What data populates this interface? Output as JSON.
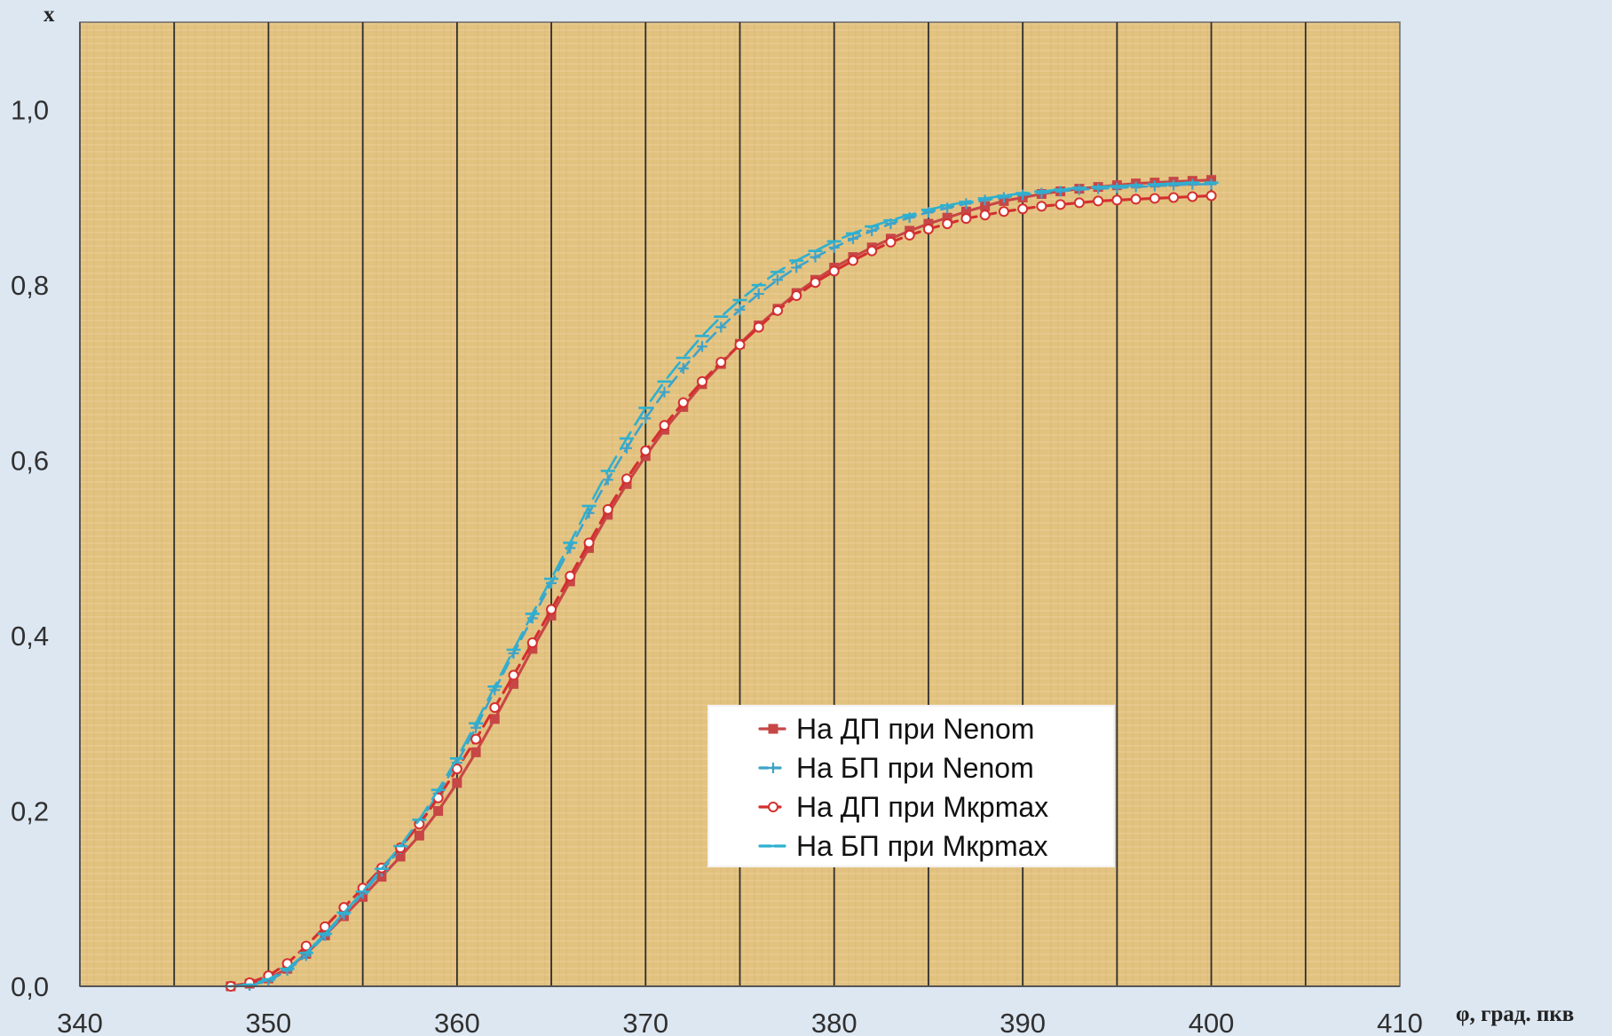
{
  "chart_data": {
    "type": "line",
    "ylabel": "x",
    "xlabel": "φ, град. пкв",
    "xlim": [
      340,
      410
    ],
    "ylim": [
      0,
      1.1
    ],
    "x_ticks": [
      340,
      350,
      360,
      370,
      380,
      390,
      400,
      410
    ],
    "y_ticks": [
      0,
      0.2,
      0.4,
      0.6,
      0.8,
      1.0
    ],
    "x_tick_labels": [
      "340",
      "350",
      "360",
      "370",
      "380",
      "390",
      "400",
      "410"
    ],
    "y_tick_labels": [
      "0,0",
      "0,2",
      "0,4",
      "0,6",
      "0,8",
      "1,0"
    ],
    "vertical_grid": [
      345,
      350,
      355,
      360,
      365,
      370,
      375,
      380,
      385,
      390,
      395,
      400,
      405
    ],
    "horizontal_grid": false,
    "legend_position": "lower-right",
    "series": [
      {
        "name": "На ДП при Nenom",
        "color": "#c74646",
        "line_style": "solid",
        "marker": "square",
        "x": [
          348,
          349,
          350,
          351,
          352,
          353,
          354,
          355,
          356,
          357,
          358,
          359,
          360,
          361,
          362,
          363,
          364,
          365,
          366,
          367,
          368,
          369,
          370,
          371,
          372,
          373,
          374,
          375,
          376,
          377,
          378,
          379,
          380,
          381,
          382,
          383,
          384,
          385,
          386,
          387,
          388,
          389,
          390,
          391,
          392,
          393,
          394,
          395,
          396,
          397,
          398,
          399,
          400
        ],
        "y": [
          0.0,
          0.003,
          0.009,
          0.02,
          0.037,
          0.058,
          0.08,
          0.102,
          0.125,
          0.148,
          0.172,
          0.2,
          0.232,
          0.267,
          0.305,
          0.345,
          0.385,
          0.423,
          0.462,
          0.5,
          0.538,
          0.573,
          0.605,
          0.635,
          0.661,
          0.687,
          0.71,
          0.733,
          0.754,
          0.773,
          0.791,
          0.806,
          0.82,
          0.832,
          0.843,
          0.853,
          0.862,
          0.87,
          0.877,
          0.884,
          0.89,
          0.896,
          0.9,
          0.904,
          0.907,
          0.91,
          0.912,
          0.914,
          0.916,
          0.917,
          0.918,
          0.919,
          0.92
        ]
      },
      {
        "name": "На БП при Nenom",
        "color": "#3fa3c9",
        "line_style": "dashed",
        "marker": "cross",
        "x": [
          348,
          349,
          350,
          351,
          352,
          353,
          354,
          355,
          356,
          357,
          358,
          359,
          360,
          361,
          362,
          363,
          364,
          365,
          366,
          367,
          368,
          369,
          370,
          371,
          372,
          373,
          374,
          375,
          376,
          377,
          378,
          379,
          380,
          381,
          382,
          383,
          384,
          385,
          386,
          387,
          388,
          389,
          390,
          391,
          392,
          393,
          394,
          395,
          396,
          397,
          398,
          399,
          400
        ],
        "y": [
          0.0,
          0.001,
          0.006,
          0.018,
          0.035,
          0.058,
          0.082,
          0.106,
          0.131,
          0.157,
          0.186,
          0.22,
          0.255,
          0.295,
          0.338,
          0.38,
          0.42,
          0.46,
          0.5,
          0.54,
          0.578,
          0.614,
          0.648,
          0.678,
          0.705,
          0.73,
          0.752,
          0.772,
          0.79,
          0.806,
          0.82,
          0.832,
          0.843,
          0.853,
          0.862,
          0.87,
          0.877,
          0.883,
          0.888,
          0.893,
          0.897,
          0.9,
          0.903,
          0.905,
          0.907,
          0.909,
          0.91,
          0.911,
          0.912,
          0.913,
          0.914,
          0.915,
          0.915
        ]
      },
      {
        "name": "На ДП при Мкрmax",
        "color": "#d42f2f",
        "line_style": "dashed",
        "marker": "hollow-circle",
        "x": [
          348,
          349,
          350,
          351,
          352,
          353,
          354,
          355,
          356,
          357,
          358,
          359,
          360,
          361,
          362,
          363,
          364,
          365,
          366,
          367,
          368,
          369,
          370,
          371,
          372,
          373,
          374,
          375,
          376,
          377,
          378,
          379,
          380,
          381,
          382,
          383,
          384,
          385,
          386,
          387,
          388,
          389,
          390,
          391,
          392,
          393,
          394,
          395,
          396,
          397,
          398,
          399,
          400
        ],
        "y": [
          0.0,
          0.004,
          0.012,
          0.026,
          0.046,
          0.068,
          0.09,
          0.112,
          0.135,
          0.158,
          0.185,
          0.215,
          0.248,
          0.282,
          0.318,
          0.355,
          0.392,
          0.43,
          0.468,
          0.506,
          0.544,
          0.579,
          0.611,
          0.64,
          0.666,
          0.69,
          0.712,
          0.732,
          0.752,
          0.771,
          0.788,
          0.803,
          0.816,
          0.828,
          0.839,
          0.849,
          0.857,
          0.864,
          0.87,
          0.876,
          0.88,
          0.884,
          0.887,
          0.89,
          0.892,
          0.894,
          0.896,
          0.897,
          0.898,
          0.899,
          0.9,
          0.901,
          0.902
        ]
      },
      {
        "name": "На БП при Мкрmax",
        "color": "#2fb0cf",
        "line_style": "long-dash",
        "marker": "dash",
        "x": [
          348,
          349,
          350,
          351,
          352,
          353,
          354,
          355,
          356,
          357,
          358,
          359,
          360,
          361,
          362,
          363,
          364,
          365,
          366,
          367,
          368,
          369,
          370,
          371,
          372,
          373,
          374,
          375,
          376,
          377,
          378,
          379,
          380,
          381,
          382,
          383,
          384,
          385,
          386,
          387,
          388,
          389,
          390,
          391,
          392,
          393,
          394,
          395,
          396,
          397,
          398,
          399,
          400
        ],
        "y": [
          0.0,
          0.002,
          0.008,
          0.02,
          0.038,
          0.06,
          0.084,
          0.108,
          0.134,
          0.16,
          0.19,
          0.224,
          0.26,
          0.3,
          0.342,
          0.384,
          0.425,
          0.465,
          0.506,
          0.548,
          0.588,
          0.625,
          0.66,
          0.69,
          0.717,
          0.742,
          0.764,
          0.783,
          0.8,
          0.815,
          0.828,
          0.839,
          0.85,
          0.859,
          0.867,
          0.874,
          0.88,
          0.886,
          0.891,
          0.895,
          0.899,
          0.902,
          0.905,
          0.907,
          0.909,
          0.911,
          0.912,
          0.913,
          0.914,
          0.915,
          0.916,
          0.917,
          0.917
        ]
      }
    ]
  }
}
